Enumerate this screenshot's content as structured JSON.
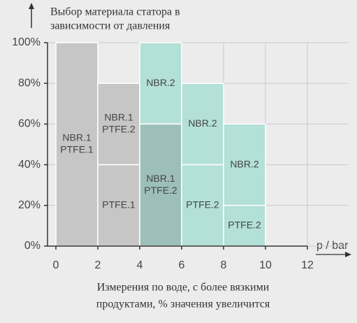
{
  "chart_data": {
    "type": "range-bar",
    "title": [
      "Выбор материала статора в",
      "зависимости от давления"
    ],
    "x_label": "p / bar",
    "caption": [
      "Измерения по воде, с более вязкими",
      "продуктами, % значения увеличится"
    ],
    "xlim": [
      -0.4,
      14
    ],
    "xticks": [
      0,
      2,
      4,
      6,
      8,
      10,
      12
    ],
    "ylim": [
      0,
      100
    ],
    "yticks": [
      {
        "value": 0,
        "label": "0%"
      },
      {
        "value": 20,
        "label": "20%"
      },
      {
        "value": 40,
        "label": "40%"
      },
      {
        "value": 60,
        "label": "60%"
      },
      {
        "value": 80,
        "label": "80%"
      },
      {
        "value": 100,
        "label": "100%"
      }
    ],
    "grid": true,
    "zones": [
      {
        "x": [
          0,
          2
        ],
        "y": [
          0,
          100
        ],
        "label": [
          "NBR.1",
          "PTFE.1"
        ],
        "color": "#c6c6c6"
      },
      {
        "x": [
          2,
          4
        ],
        "y": [
          40,
          80
        ],
        "label": [
          "NBR.1",
          "PTFE.2"
        ],
        "color": "#c6c6c6"
      },
      {
        "x": [
          2,
          4
        ],
        "y": [
          0,
          40
        ],
        "label": [
          "PTFE.1"
        ],
        "color": "#c6c6c6"
      },
      {
        "x": [
          4,
          6
        ],
        "y": [
          60,
          100
        ],
        "label": [
          "NBR.2"
        ],
        "color": "#b3e0d7"
      },
      {
        "x": [
          4,
          6
        ],
        "y": [
          0,
          60
        ],
        "label": [
          "NBR.1",
          "PTFE.2"
        ],
        "color": "#9dbfba"
      },
      {
        "x": [
          6,
          8
        ],
        "y": [
          40,
          80
        ],
        "label": [
          "NBR.2"
        ],
        "color": "#b3e0d7"
      },
      {
        "x": [
          6,
          8
        ],
        "y": [
          0,
          40
        ],
        "label": [
          "PTFE.2"
        ],
        "color": "#b3e0d7"
      },
      {
        "x": [
          8,
          10
        ],
        "y": [
          20,
          60
        ],
        "label": [
          "NBR.2"
        ],
        "color": "#b3e0d7"
      },
      {
        "x": [
          8,
          10
        ],
        "y": [
          0,
          20
        ],
        "label": [
          "PTFE.2"
        ],
        "color": "#b3e0d7"
      }
    ]
  }
}
